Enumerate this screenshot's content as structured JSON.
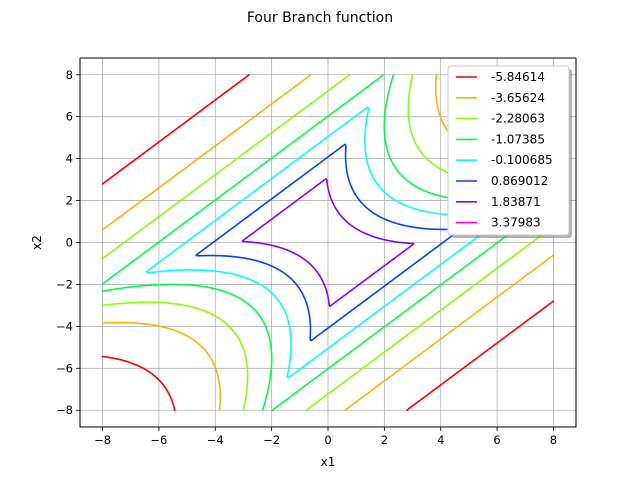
{
  "chart_data": {
    "type": "contour",
    "title": "Four Branch function",
    "xlabel": "x1",
    "ylabel": "x2",
    "xlim": [
      -8.8,
      8.8
    ],
    "ylim": [
      -8.8,
      8.8
    ],
    "xticks": [
      -8,
      -6,
      -4,
      -2,
      0,
      2,
      4,
      6,
      8
    ],
    "yticks": [
      -8,
      -6,
      -4,
      -2,
      0,
      2,
      4,
      6,
      8
    ],
    "grid": true,
    "legend_position": "upper-right",
    "function": "min of four branches: 3 + 0.1(x1-x2)^2 - (x1+x2)/sqrt(2); 3 + 0.1(x1-x2)^2 + (x1+x2)/sqrt(2); (x1-x2) + 7/sqrt(2); (x2-x1) + 7/sqrt(2)",
    "domain": {
      "x1": [
        -8,
        8
      ],
      "x2": [
        -8,
        8
      ]
    },
    "levels": [
      {
        "name": "-5.84614",
        "value": -5.84614,
        "color": "#ff0000"
      },
      {
        "name": "-3.65624",
        "value": -3.65624,
        "color": "#ffb300"
      },
      {
        "name": "-2.28063",
        "value": -2.28063,
        "color": "#88ff00"
      },
      {
        "name": "-1.07385",
        "value": -1.07385,
        "color": "#00ff44"
      },
      {
        "name": "-0.100685",
        "value": -0.100685,
        "color": "#00ffff"
      },
      {
        "name": "0.869012",
        "value": 0.869012,
        "color": "#0044ff"
      },
      {
        "name": "1.83871",
        "value": 1.83871,
        "color": "#8800ff"
      },
      {
        "name": "3.37983",
        "value": 3.37983,
        "color": "#ff00cc"
      }
    ]
  }
}
